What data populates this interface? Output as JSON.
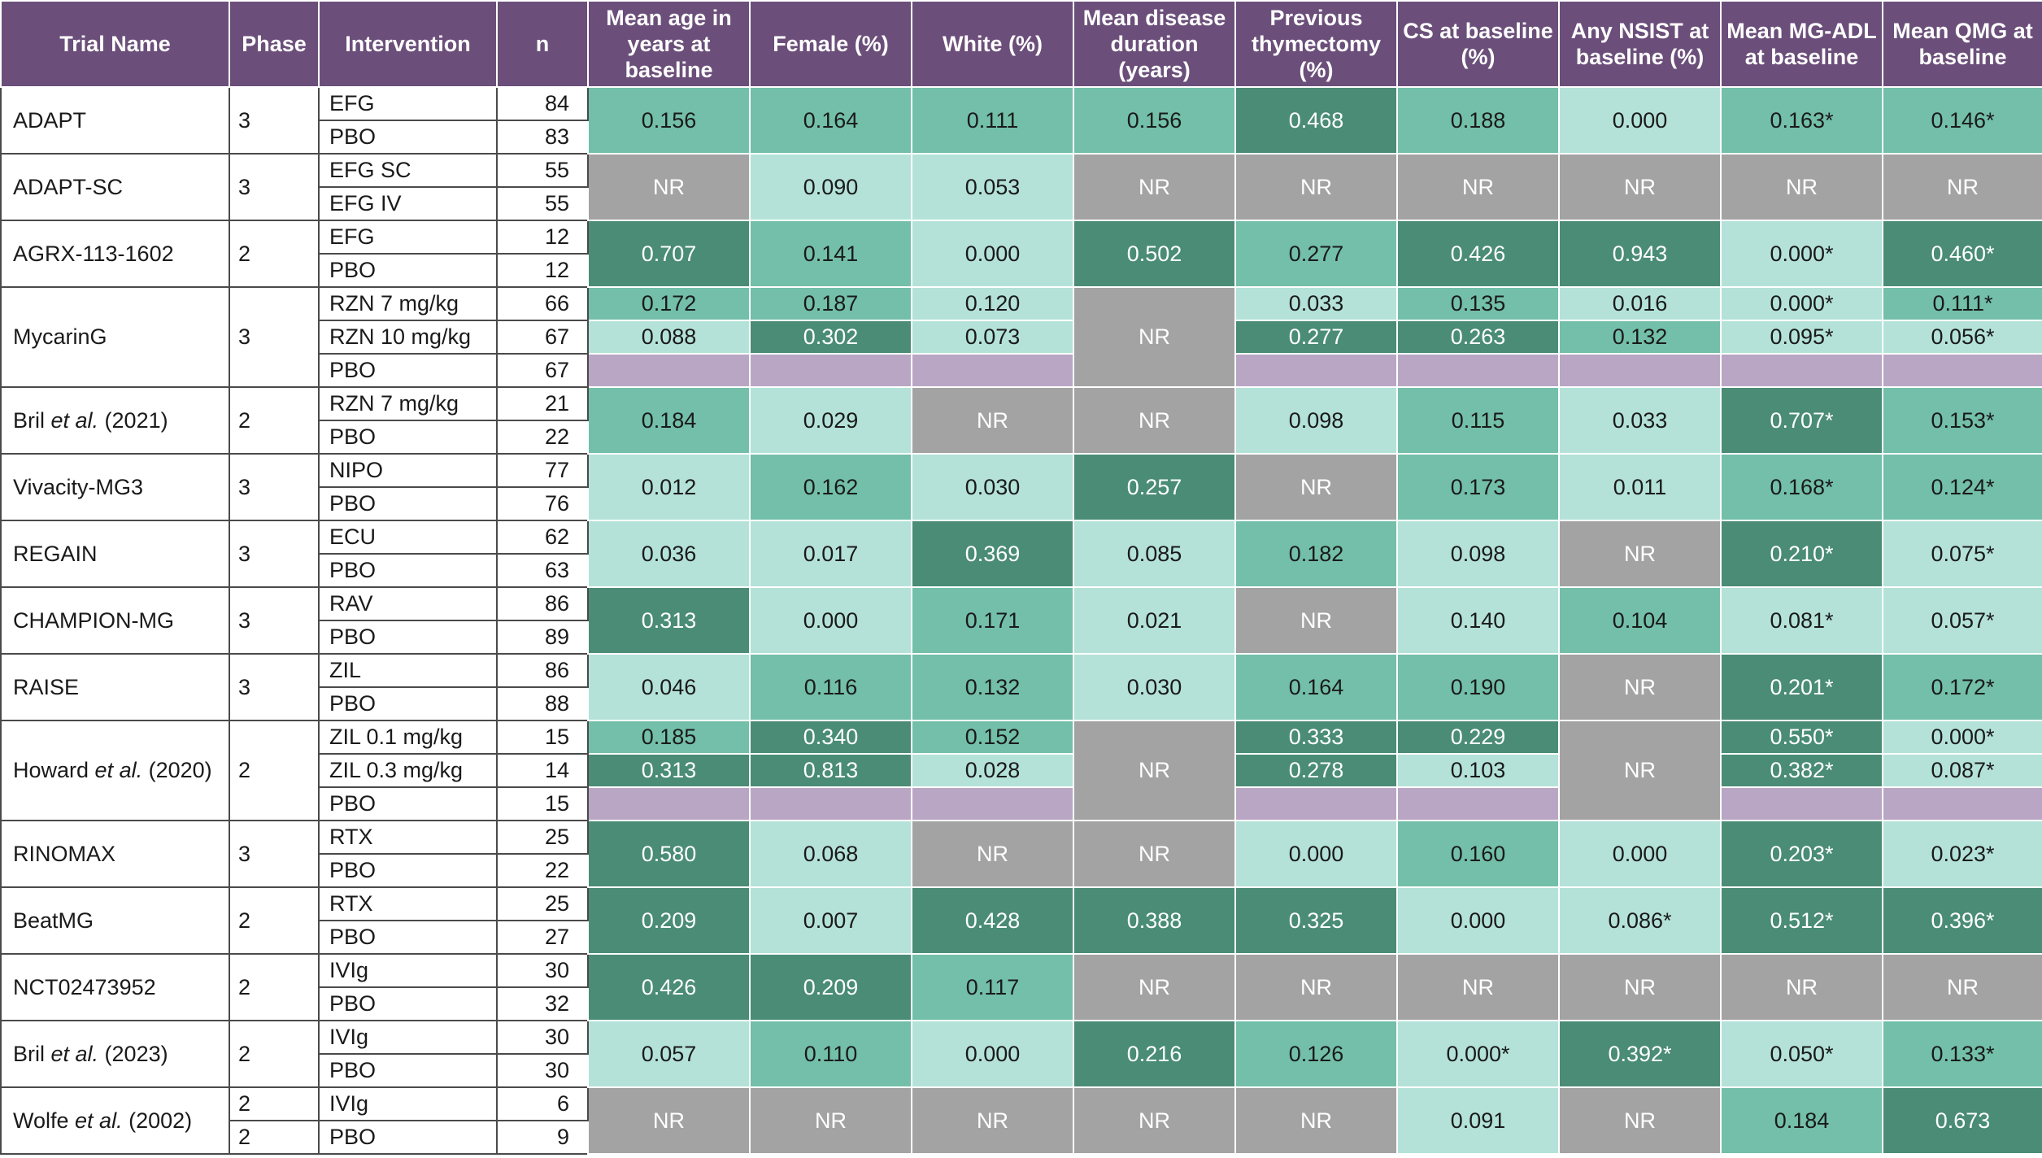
{
  "headers": {
    "trial": "Trial Name",
    "phase": "Phase",
    "intervention": "Intervention",
    "n": "n",
    "age": "Mean age in years at baseline",
    "female": "Female (%)",
    "white": "White (%)",
    "duration": "Mean disease duration (years)",
    "thymectomy": "Previous thymectomy (%)",
    "cs": "CS at baseline (%)",
    "nsist": "Any NSIST at baseline (%)",
    "mgadl": "Mean MG-ADL at baseline",
    "qmg": "Mean QMG at baseline"
  },
  "legend_colors": {
    "header": "#6b4f7a",
    "light": "#b4e2d8",
    "medium": "#73bfa9",
    "dark": "#4a8c76",
    "not_reported": "#a3a3a3",
    "reference": "#b9a6c4"
  },
  "trials": [
    {
      "name": "ADAPT",
      "phase": "3",
      "arms": [
        {
          "int": "EFG",
          "n": "84"
        },
        {
          "int": "PBO",
          "n": "83"
        }
      ],
      "values": [
        "0.156",
        "0.164",
        "0.111",
        "0.156",
        "0.468",
        "0.188",
        "0.000",
        "0.163*",
        "0.146*"
      ]
    },
    {
      "name": "ADAPT-SC",
      "phase": "3",
      "arms": [
        {
          "int": "EFG SC",
          "n": "55"
        },
        {
          "int": "EFG IV",
          "n": "55"
        }
      ],
      "values": [
        "NR",
        "0.090",
        "0.053",
        "NR",
        "NR",
        "NR",
        "NR",
        "NR",
        "NR"
      ]
    },
    {
      "name": "AGRX-113-1602",
      "phase": "2",
      "arms": [
        {
          "int": "EFG",
          "n": "12"
        },
        {
          "int": "PBO",
          "n": "12"
        }
      ],
      "values": [
        "0.707",
        "0.141",
        "0.000",
        "0.502",
        "0.277",
        "0.426",
        "0.943",
        "0.000*",
        "0.460*"
      ]
    },
    {
      "name": "MycarinG",
      "phase": "3",
      "arms": [
        {
          "int": "RZN 7 mg/kg",
          "n": "66"
        },
        {
          "int": "RZN 10 mg/kg",
          "n": "67"
        },
        {
          "int": "PBO",
          "n": "67"
        }
      ],
      "rows": [
        [
          "0.172",
          "0.187",
          "0.120",
          "0.033",
          "0.135",
          "0.016",
          "0.000*",
          "0.111*"
        ],
        [
          "0.088",
          "0.302",
          "0.073",
          "0.277",
          "0.263",
          "0.132",
          "0.095*",
          "0.056*"
        ]
      ],
      "duration": "NR"
    },
    {
      "name_pre": "Bril ",
      "name_it": "et al.",
      "name_post": " (2021)",
      "phase": "2",
      "arms": [
        {
          "int": "RZN 7 mg/kg",
          "n": "21"
        },
        {
          "int": "PBO",
          "n": "22"
        }
      ],
      "values": [
        "0.184",
        "0.029",
        "NR",
        "NR",
        "0.098",
        "0.115",
        "0.033",
        "0.707*",
        "0.153*"
      ]
    },
    {
      "name": "Vivacity-MG3",
      "phase": "3",
      "arms": [
        {
          "int": "NIPO",
          "n": "77"
        },
        {
          "int": "PBO",
          "n": "76"
        }
      ],
      "values": [
        "0.012",
        "0.162",
        "0.030",
        "0.257",
        "NR",
        "0.173",
        "0.011",
        "0.168*",
        "0.124*"
      ]
    },
    {
      "name": "REGAIN",
      "phase": "3",
      "arms": [
        {
          "int": "ECU",
          "n": "62"
        },
        {
          "int": "PBO",
          "n": "63"
        }
      ],
      "values": [
        "0.036",
        "0.017",
        "0.369",
        "0.085",
        "0.182",
        "0.098",
        "NR",
        "0.210*",
        "0.075*"
      ]
    },
    {
      "name": "CHAMPION-MG",
      "phase": "3",
      "arms": [
        {
          "int": "RAV",
          "n": "86"
        },
        {
          "int": "PBO",
          "n": "89"
        }
      ],
      "values": [
        "0.313",
        "0.000",
        "0.171",
        "0.021",
        "NR",
        "0.140",
        "0.104",
        "0.081*",
        "0.057*"
      ]
    },
    {
      "name": "RAISE",
      "phase": "3",
      "arms": [
        {
          "int": "ZIL",
          "n": "86"
        },
        {
          "int": "PBO",
          "n": "88"
        }
      ],
      "values": [
        "0.046",
        "0.116",
        "0.132",
        "0.030",
        "0.164",
        "0.190",
        "NR",
        "0.201*",
        "0.172*"
      ]
    },
    {
      "name_pre": "Howard ",
      "name_it": "et al.",
      "name_post": " (2020)",
      "phase": "2",
      "arms": [
        {
          "int": "ZIL 0.1 mg/kg",
          "n": "15"
        },
        {
          "int": "ZIL 0.3 mg/kg",
          "n": "14"
        },
        {
          "int": "PBO",
          "n": "15"
        }
      ],
      "rows": [
        [
          "0.185",
          "0.340",
          "0.152",
          "0.333",
          "0.229",
          "0.550*",
          "0.000*"
        ],
        [
          "0.313",
          "0.813",
          "0.028",
          "0.278",
          "0.103",
          "0.382*",
          "0.087*"
        ]
      ],
      "duration": "NR",
      "nsist": "NR"
    },
    {
      "name": "RINOMAX",
      "phase": "3",
      "arms": [
        {
          "int": "RTX",
          "n": "25"
        },
        {
          "int": "PBO",
          "n": "22"
        }
      ],
      "values": [
        "0.580",
        "0.068",
        "NR",
        "NR",
        "0.000",
        "0.160",
        "0.000",
        "0.203*",
        "0.023*"
      ]
    },
    {
      "name": "BeatMG",
      "phase": "2",
      "arms": [
        {
          "int": "RTX",
          "n": "25"
        },
        {
          "int": "PBO",
          "n": "27"
        }
      ],
      "values": [
        "0.209",
        "0.007",
        "0.428",
        "0.388",
        "0.325",
        "0.000",
        "0.086*",
        "0.512*",
        "0.396*"
      ]
    },
    {
      "name": "NCT02473952",
      "phase": "2",
      "arms": [
        {
          "int": "IVIg",
          "n": "30"
        },
        {
          "int": "PBO",
          "n": "32"
        }
      ],
      "values": [
        "0.426",
        "0.209",
        "0.117",
        "NR",
        "NR",
        "NR",
        "NR",
        "NR",
        "NR"
      ]
    },
    {
      "name_pre": "Bril ",
      "name_it": "et al.",
      "name_post": " (2023)",
      "phase": "2",
      "arms": [
        {
          "int": "IVIg",
          "n": "30"
        },
        {
          "int": "PBO",
          "n": "30"
        }
      ],
      "values": [
        "0.057",
        "0.110",
        "0.000",
        "0.216",
        "0.126",
        "0.000*",
        "0.392*",
        "0.050*",
        "0.133*"
      ]
    },
    {
      "name_pre": "Wolfe ",
      "name_it": "et al.",
      "name_post": " (2002)",
      "phase_a": "2",
      "phase_b": "2",
      "arms": [
        {
          "int": "IVIg",
          "n": "6"
        },
        {
          "int": "PBO",
          "n": "9"
        }
      ],
      "values": [
        "NR",
        "NR",
        "NR",
        "NR",
        "NR",
        "0.091",
        "NR",
        "0.184",
        "0.673"
      ]
    }
  ]
}
